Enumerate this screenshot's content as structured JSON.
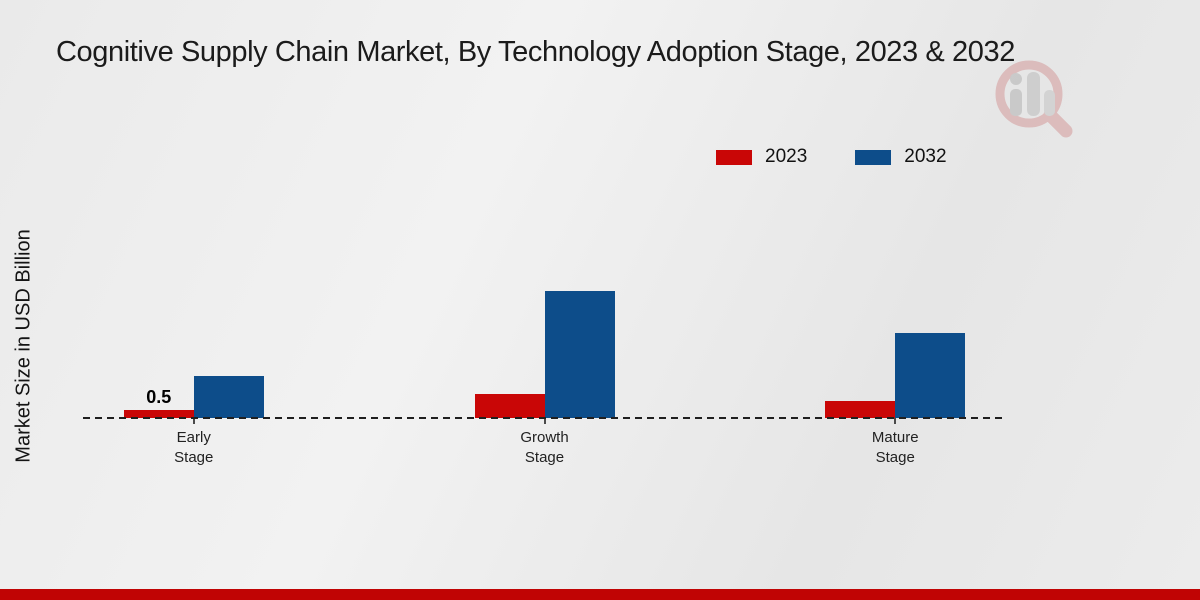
{
  "title": "Cognitive Supply Chain Market, By Technology Adoption Stage, 2023 & 2032",
  "y_axis_label": "Market Size in USD Billion",
  "legend": {
    "items": [
      {
        "label": "2023",
        "color": "#c90606"
      },
      {
        "label": "2032",
        "color": "#0d4d8a"
      }
    ]
  },
  "chart_data": {
    "type": "bar",
    "title": "Cognitive Supply Chain Market, By Technology Adoption Stage, 2023 & 2032",
    "xlabel": "",
    "ylabel": "Market Size in USD Billion",
    "categories": [
      "Early Stage",
      "Growth Stage",
      "Mature Stage"
    ],
    "series": [
      {
        "name": "2023",
        "color": "#c90606",
        "values": [
          0.5,
          1.4,
          1.0
        ],
        "bar_labels": [
          "0.5",
          "",
          ""
        ]
      },
      {
        "name": "2032",
        "color": "#0d4d8a",
        "values": [
          2.5,
          7.5,
          5.0
        ],
        "bar_labels": [
          "",
          "",
          ""
        ]
      }
    ],
    "ylim": [
      0,
      8
    ],
    "grid": false,
    "legend_position": "top-right",
    "baseline_style": "dashed",
    "value_unit": "USD Billion"
  },
  "footer": {
    "accent_color": "#c00404"
  },
  "watermark": {
    "icon": "magnifier-bar-chart-logo",
    "ring_color": "#cf8a8a",
    "bar_color": "#a8a8a8"
  }
}
